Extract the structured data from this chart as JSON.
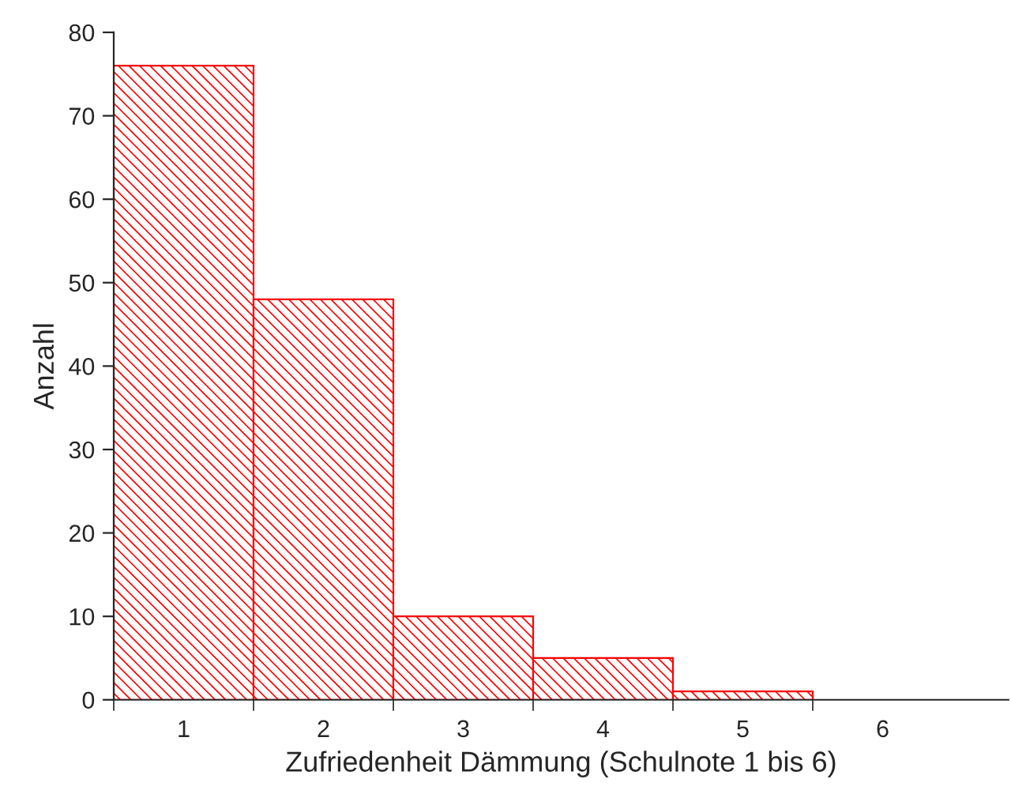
{
  "chart_data": {
    "type": "bar",
    "xlabel": "Zufriedenheit Dämmung (Schulnote 1 bis 6)",
    "ylabel": "Anzahl",
    "categories": [
      "1",
      "2",
      "3",
      "4",
      "5",
      "6"
    ],
    "values": [
      76,
      48,
      10,
      5,
      1,
      null
    ],
    "color": "#ff0000",
    "ylim": [
      0,
      80
    ],
    "yticks": [
      0,
      10,
      20,
      30,
      40,
      50,
      60,
      70,
      80
    ],
    "grid": false,
    "legend": false
  }
}
